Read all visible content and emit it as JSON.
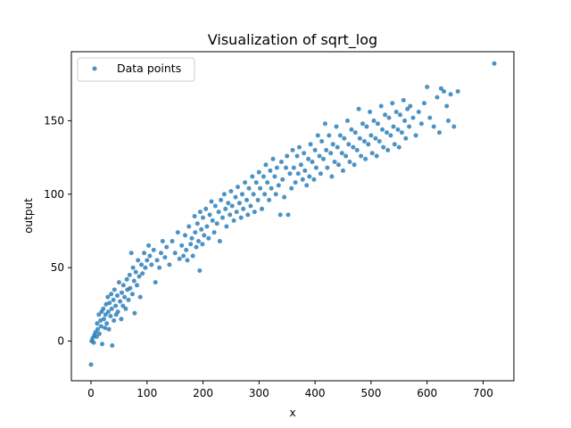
{
  "chart_data": {
    "type": "scatter",
    "title": "Visualization of sqrt_log",
    "xlabel": "x",
    "ylabel": "output",
    "xlim": [
      -35,
      755
    ],
    "ylim": [
      -27,
      197
    ],
    "xticks": [
      0,
      100,
      200,
      300,
      400,
      500,
      600,
      700
    ],
    "yticks": [
      0,
      50,
      100,
      150
    ],
    "grid": false,
    "legend_position": "top-left",
    "series": [
      {
        "name": "Data points",
        "color": "#1f77b4",
        "points": [
          [
            0,
            -16
          ],
          [
            1,
            0
          ],
          [
            3,
            2
          ],
          [
            5,
            -1
          ],
          [
            6,
            4
          ],
          [
            8,
            6
          ],
          [
            10,
            3
          ],
          [
            11,
            12
          ],
          [
            12,
            8
          ],
          [
            14,
            18
          ],
          [
            15,
            5
          ],
          [
            17,
            14
          ],
          [
            18,
            10
          ],
          [
            19,
            20
          ],
          [
            20,
            -2
          ],
          [
            22,
            22
          ],
          [
            23,
            15
          ],
          [
            25,
            9
          ],
          [
            26,
            18
          ],
          [
            27,
            25
          ],
          [
            28,
            12
          ],
          [
            30,
            30
          ],
          [
            31,
            20
          ],
          [
            32,
            8
          ],
          [
            33,
            26
          ],
          [
            35,
            17
          ],
          [
            36,
            32
          ],
          [
            37,
            22
          ],
          [
            38,
            -3
          ],
          [
            40,
            28
          ],
          [
            41,
            14
          ],
          [
            42,
            35
          ],
          [
            44,
            24
          ],
          [
            45,
            18
          ],
          [
            47,
            31
          ],
          [
            48,
            20
          ],
          [
            50,
            40
          ],
          [
            52,
            27
          ],
          [
            54,
            15
          ],
          [
            55,
            33
          ],
          [
            57,
            24
          ],
          [
            58,
            38
          ],
          [
            60,
            30
          ],
          [
            62,
            22
          ],
          [
            64,
            42
          ],
          [
            65,
            35
          ],
          [
            67,
            28
          ],
          [
            69,
            45
          ],
          [
            70,
            36
          ],
          [
            72,
            60
          ],
          [
            74,
            32
          ],
          [
            75,
            50
          ],
          [
            77,
            41
          ],
          [
            78,
            19
          ],
          [
            80,
            47
          ],
          [
            82,
            38
          ],
          [
            84,
            55
          ],
          [
            86,
            44
          ],
          [
            88,
            30
          ],
          [
            90,
            52
          ],
          [
            92,
            46
          ],
          [
            95,
            60
          ],
          [
            97,
            50
          ],
          [
            100,
            55
          ],
          [
            103,
            65
          ],
          [
            105,
            58
          ],
          [
            108,
            52
          ],
          [
            112,
            62
          ],
          [
            115,
            40
          ],
          [
            118,
            55
          ],
          [
            122,
            50
          ],
          [
            125,
            60
          ],
          [
            128,
            68
          ],
          [
            132,
            57
          ],
          [
            135,
            64
          ],
          [
            140,
            52
          ],
          [
            145,
            68
          ],
          [
            150,
            60
          ],
          [
            155,
            74
          ],
          [
            158,
            56
          ],
          [
            162,
            65
          ],
          [
            165,
            58
          ],
          [
            168,
            72
          ],
          [
            170,
            62
          ],
          [
            172,
            55
          ],
          [
            175,
            78
          ],
          [
            178,
            66
          ],
          [
            180,
            70
          ],
          [
            182,
            58
          ],
          [
            185,
            85
          ],
          [
            186,
            74
          ],
          [
            188,
            64
          ],
          [
            190,
            80
          ],
          [
            192,
            68
          ],
          [
            194,
            48
          ],
          [
            195,
            88
          ],
          [
            197,
            76
          ],
          [
            199,
            66
          ],
          [
            200,
            84
          ],
          [
            202,
            72
          ],
          [
            205,
            90
          ],
          [
            207,
            78
          ],
          [
            210,
            70
          ],
          [
            212,
            86
          ],
          [
            215,
            95
          ],
          [
            217,
            82
          ],
          [
            220,
            74
          ],
          [
            222,
            92
          ],
          [
            225,
            80
          ],
          [
            228,
            88
          ],
          [
            230,
            68
          ],
          [
            232,
            96
          ],
          [
            235,
            84
          ],
          [
            238,
            100
          ],
          [
            240,
            90
          ],
          [
            242,
            78
          ],
          [
            245,
            94
          ],
          [
            248,
            86
          ],
          [
            250,
            102
          ],
          [
            252,
            92
          ],
          [
            255,
            82
          ],
          [
            258,
            98
          ],
          [
            260,
            88
          ],
          [
            262,
            105
          ],
          [
            265,
            94
          ],
          [
            268,
            84
          ],
          [
            270,
            100
          ],
          [
            272,
            90
          ],
          [
            275,
            108
          ],
          [
            278,
            96
          ],
          [
            280,
            86
          ],
          [
            282,
            104
          ],
          [
            285,
            92
          ],
          [
            288,
            112
          ],
          [
            290,
            100
          ],
          [
            292,
            88
          ],
          [
            295,
            108
          ],
          [
            298,
            96
          ],
          [
            300,
            115
          ],
          [
            302,
            104
          ],
          [
            305,
            90
          ],
          [
            308,
            112
          ],
          [
            310,
            100
          ],
          [
            312,
            120
          ],
          [
            315,
            108
          ],
          [
            318,
            96
          ],
          [
            320,
            116
          ],
          [
            322,
            104
          ],
          [
            325,
            124
          ],
          [
            328,
            112
          ],
          [
            330,
            100
          ],
          [
            332,
            118
          ],
          [
            335,
            106
          ],
          [
            338,
            86
          ],
          [
            340,
            122
          ],
          [
            342,
            110
          ],
          [
            345,
            98
          ],
          [
            348,
            118
          ],
          [
            350,
            126
          ],
          [
            352,
            86
          ],
          [
            355,
            114
          ],
          [
            358,
            104
          ],
          [
            360,
            130
          ],
          [
            362,
            118
          ],
          [
            365,
            108
          ],
          [
            368,
            126
          ],
          [
            370,
            114
          ],
          [
            372,
            132
          ],
          [
            375,
            120
          ],
          [
            378,
            110
          ],
          [
            380,
            128
          ],
          [
            382,
            116
          ],
          [
            385,
            106
          ],
          [
            388,
            124
          ],
          [
            390,
            112
          ],
          [
            392,
            134
          ],
          [
            395,
            122
          ],
          [
            398,
            110
          ],
          [
            400,
            130
          ],
          [
            402,
            118
          ],
          [
            405,
            140
          ],
          [
            408,
            126
          ],
          [
            410,
            114
          ],
          [
            412,
            136
          ],
          [
            415,
            124
          ],
          [
            418,
            148
          ],
          [
            420,
            130
          ],
          [
            422,
            118
          ],
          [
            425,
            140
          ],
          [
            428,
            128
          ],
          [
            430,
            112
          ],
          [
            432,
            134
          ],
          [
            435,
            122
          ],
          [
            438,
            146
          ],
          [
            440,
            132
          ],
          [
            442,
            120
          ],
          [
            445,
            140
          ],
          [
            448,
            128
          ],
          [
            450,
            116
          ],
          [
            452,
            138
          ],
          [
            455,
            126
          ],
          [
            458,
            150
          ],
          [
            460,
            134
          ],
          [
            462,
            122
          ],
          [
            465,
            144
          ],
          [
            468,
            132
          ],
          [
            470,
            120
          ],
          [
            472,
            142
          ],
          [
            475,
            130
          ],
          [
            478,
            158
          ],
          [
            480,
            138
          ],
          [
            482,
            126
          ],
          [
            485,
            148
          ],
          [
            488,
            136
          ],
          [
            490,
            124
          ],
          [
            492,
            146
          ],
          [
            495,
            134
          ],
          [
            498,
            156
          ],
          [
            500,
            140
          ],
          [
            502,
            128
          ],
          [
            505,
            150
          ],
          [
            508,
            138
          ],
          [
            510,
            126
          ],
          [
            512,
            148
          ],
          [
            515,
            136
          ],
          [
            518,
            160
          ],
          [
            520,
            144
          ],
          [
            522,
            132
          ],
          [
            525,
            154
          ],
          [
            528,
            142
          ],
          [
            530,
            130
          ],
          [
            532,
            152
          ],
          [
            535,
            140
          ],
          [
            538,
            162
          ],
          [
            540,
            146
          ],
          [
            542,
            134
          ],
          [
            545,
            156
          ],
          [
            548,
            144
          ],
          [
            550,
            132
          ],
          [
            552,
            154
          ],
          [
            555,
            142
          ],
          [
            558,
            164
          ],
          [
            560,
            150
          ],
          [
            562,
            138
          ],
          [
            565,
            158
          ],
          [
            568,
            146
          ],
          [
            570,
            160
          ],
          [
            575,
            152
          ],
          [
            580,
            140
          ],
          [
            585,
            156
          ],
          [
            590,
            148
          ],
          [
            595,
            162
          ],
          [
            600,
            173
          ],
          [
            605,
            152
          ],
          [
            612,
            146
          ],
          [
            618,
            166
          ],
          [
            622,
            142
          ],
          [
            625,
            172
          ],
          [
            630,
            170
          ],
          [
            635,
            160
          ],
          [
            638,
            150
          ],
          [
            642,
            168
          ],
          [
            648,
            146
          ],
          [
            655,
            170
          ],
          [
            720,
            189
          ]
        ]
      }
    ]
  }
}
